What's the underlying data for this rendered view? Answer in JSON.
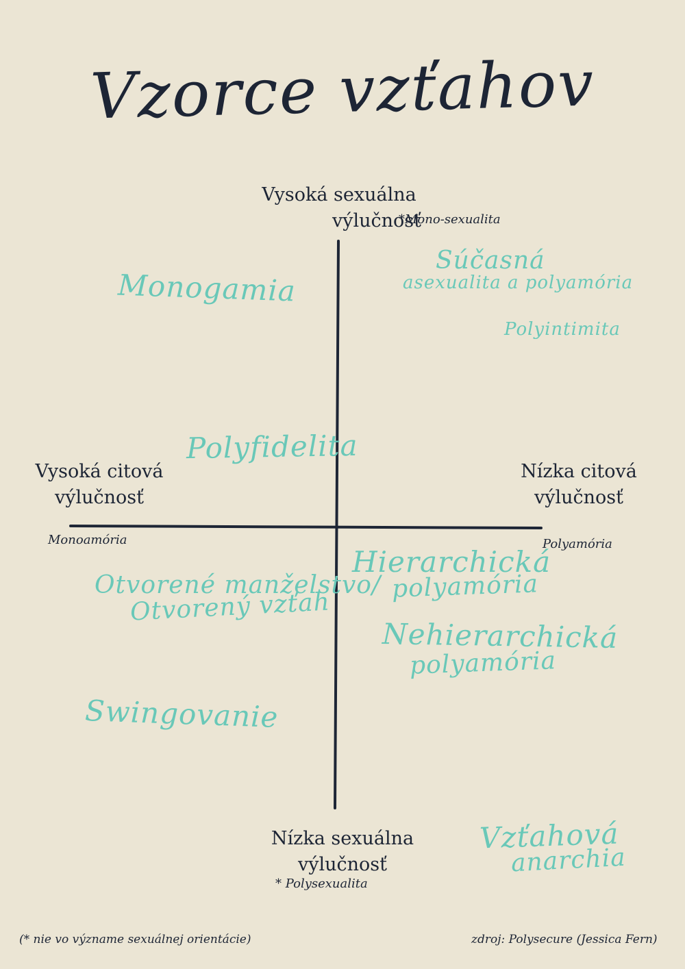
{
  "title": "Vzorce vzťahov",
  "top_axis": {
    "line1": "Vysoká sexuálna",
    "line2": "výlučnosť",
    "note": "*Mono-sexualita"
  },
  "bottom_axis": {
    "line1": "Nízka sexuálna",
    "line2": "výlučnosť",
    "note": "* Polysexualita"
  },
  "left_axis": {
    "line1": "Vysoká citová",
    "line2": "výlučnosť",
    "note": "Monoamória"
  },
  "right_axis": {
    "line1": "Nízka citová",
    "line2": "výlučnosť",
    "note": "Polyamória"
  },
  "patterns": {
    "monogamia": "Monogamia",
    "sucasna_1": "Súčasná",
    "sucasna_2": "asexualita a polyamória",
    "polyintimita": "Polyintimita",
    "polyfidelita": "Polyfidelita",
    "otvorene_1": "Otvorené manželstvo/",
    "otvorene_2": "Otvorený vzťah",
    "hierarchicka_1": "Hierarchická",
    "hierarchicka_2": "polyamória",
    "nehierarchicka_1": "Nehierarchická",
    "nehierarchicka_2": "polyamória",
    "swingovanie": "Swingovanie",
    "anarchia_1": "Vzťahová",
    "anarchia_2": "anarchia"
  },
  "footer": {
    "footnote": "(* nie vo význame sexuálnej orientácie)",
    "source": "zdroj: Polysecure (Jessica Fern)"
  },
  "colors": {
    "background": "#ebe5d4",
    "ink": "#1d2535",
    "accent": "#69c8b8"
  }
}
